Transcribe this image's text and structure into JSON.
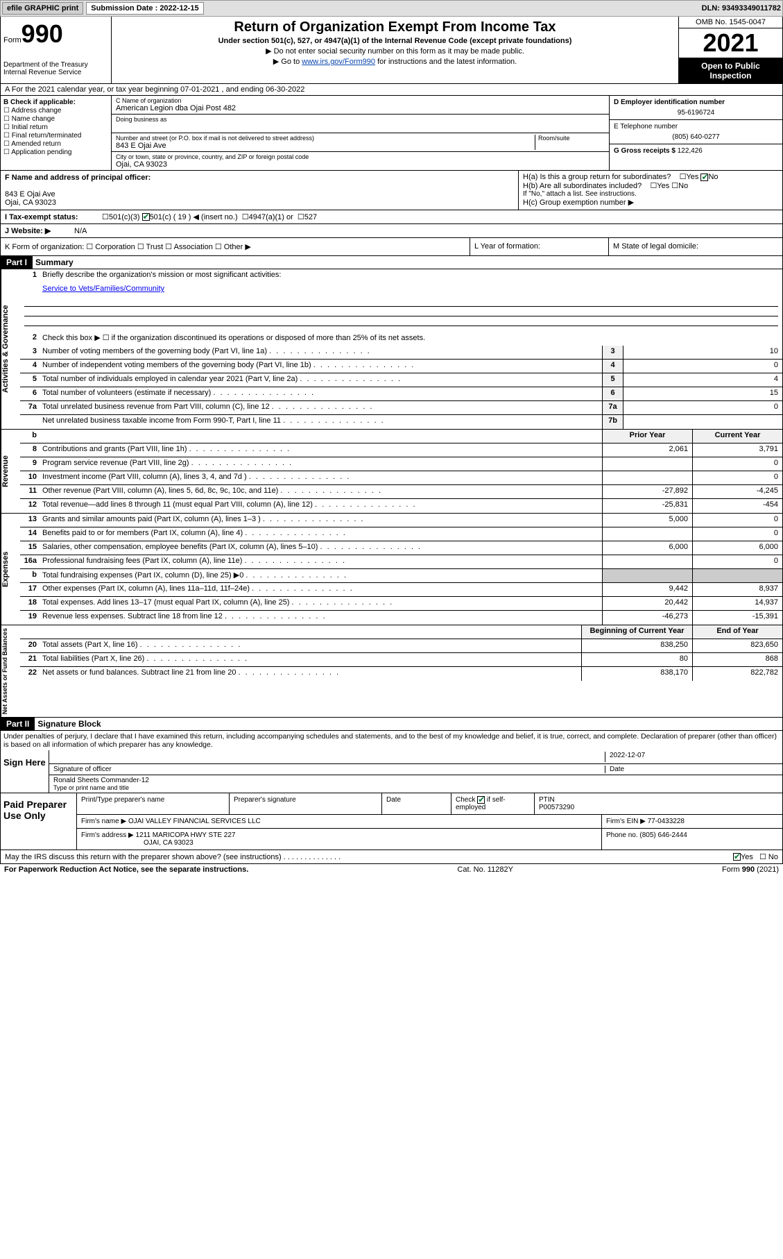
{
  "topbar": {
    "efile": "efile GRAPHIC print",
    "sub_label": "Submission Date : 2022-12-15",
    "dln": "DLN: 93493349011782"
  },
  "header": {
    "form_word": "Form",
    "form_num": "990",
    "dept": "Department of the Treasury Internal Revenue Service",
    "title": "Return of Organization Exempt From Income Tax",
    "sub": "Under section 501(c), 527, or 4947(a)(1) of the Internal Revenue Code (except private foundations)",
    "note1": "▶ Do not enter social security number on this form as it may be made public.",
    "note2_pre": "▶ Go to ",
    "note2_link": "www.irs.gov/Form990",
    "note2_post": " for instructions and the latest information.",
    "omb": "OMB No. 1545-0047",
    "year": "2021",
    "open": "Open to Public Inspection"
  },
  "line_a": "A For the 2021 calendar year, or tax year beginning 07-01-2021   , and ending 06-30-2022",
  "col_b": {
    "title": "B Check if applicable:",
    "items": [
      "Address change",
      "Name change",
      "Initial return",
      "Final return/terminated",
      "Amended return",
      "Application pending"
    ]
  },
  "col_c": {
    "name_lbl": "C Name of organization",
    "name": "American Legion dba Ojai Post 482",
    "dba_lbl": "Doing business as",
    "addr_lbl": "Number and street (or P.O. box if mail is not delivered to street address)",
    "room_lbl": "Room/suite",
    "addr": "843 E Ojai Ave",
    "city_lbl": "City or town, state or province, country, and ZIP or foreign postal code",
    "city": "Ojai, CA  93023"
  },
  "col_de": {
    "d_lbl": "D Employer identification number",
    "d_val": "95-6196724",
    "e_lbl": "E Telephone number",
    "e_val": "(805) 640-0277",
    "g_lbl": "G Gross receipts $",
    "g_val": "122,426"
  },
  "fh": {
    "f_lbl": "F Name and address of principal officer:",
    "f_addr1": "843 E Ojai Ave",
    "f_addr2": "Ojai, CA  93023",
    "ha": "H(a)  Is this a group return for subordinates?",
    "hb": "H(b)  Are all subordinates included?",
    "hb_note": "If \"No,\" attach a list. See instructions.",
    "hc": "H(c)  Group exemption number ▶"
  },
  "line_i": {
    "lbl": "I   Tax-exempt status:",
    "o1": "501(c)(3)",
    "o2": "501(c) ( 19 ) ◀ (insert no.)",
    "o3": "4947(a)(1) or",
    "o4": "527"
  },
  "line_j": {
    "lbl": "J   Website: ▶",
    "val": "N/A"
  },
  "line_k": "K Form of organization:   ☐ Corporation  ☐ Trust  ☐ Association  ☐ Other ▶",
  "line_l": "L Year of formation:",
  "line_m": "M State of legal domicile:",
  "part1": {
    "hdr": "Part I",
    "title": "Summary"
  },
  "summary": {
    "q1": "Briefly describe the organization's mission or most significant activities:",
    "q1_val": "Service to Vets/Families/Community",
    "q2": "Check this box ▶ ☐  if the organization discontinued its operations or disposed of more than 25% of its net assets.",
    "rows": [
      {
        "n": "3",
        "d": "Number of voting members of the governing body (Part VI, line 1a)",
        "bx": "3",
        "v": "10"
      },
      {
        "n": "4",
        "d": "Number of independent voting members of the governing body (Part VI, line 1b)",
        "bx": "4",
        "v": "0"
      },
      {
        "n": "5",
        "d": "Total number of individuals employed in calendar year 2021 (Part V, line 2a)",
        "bx": "5",
        "v": "4"
      },
      {
        "n": "6",
        "d": "Total number of volunteers (estimate if necessary)",
        "bx": "6",
        "v": "15"
      },
      {
        "n": "7a",
        "d": "Total unrelated business revenue from Part VIII, column (C), line 12",
        "bx": "7a",
        "v": "0"
      },
      {
        "n": "",
        "d": "Net unrelated business taxable income from Form 990-T, Part I, line 11",
        "bx": "7b",
        "v": ""
      }
    ],
    "col_prior": "Prior Year",
    "col_curr": "Current Year",
    "rev": [
      {
        "n": "8",
        "d": "Contributions and grants (Part VIII, line 1h)",
        "p": "2,061",
        "c": "3,791"
      },
      {
        "n": "9",
        "d": "Program service revenue (Part VIII, line 2g)",
        "p": "",
        "c": "0"
      },
      {
        "n": "10",
        "d": "Investment income (Part VIII, column (A), lines 3, 4, and 7d )",
        "p": "",
        "c": "0"
      },
      {
        "n": "11",
        "d": "Other revenue (Part VIII, column (A), lines 5, 6d, 8c, 9c, 10c, and 11e)",
        "p": "-27,892",
        "c": "-4,245"
      },
      {
        "n": "12",
        "d": "Total revenue—add lines 8 through 11 (must equal Part VIII, column (A), line 12)",
        "p": "-25,831",
        "c": "-454"
      }
    ],
    "exp": [
      {
        "n": "13",
        "d": "Grants and similar amounts paid (Part IX, column (A), lines 1–3 )",
        "p": "5,000",
        "c": "0"
      },
      {
        "n": "14",
        "d": "Benefits paid to or for members (Part IX, column (A), line 4)",
        "p": "",
        "c": "0"
      },
      {
        "n": "15",
        "d": "Salaries, other compensation, employee benefits (Part IX, column (A), lines 5–10)",
        "p": "6,000",
        "c": "6,000"
      },
      {
        "n": "16a",
        "d": "Professional fundraising fees (Part IX, column (A), line 11e)",
        "p": "",
        "c": "0"
      },
      {
        "n": "b",
        "d": "Total fundraising expenses (Part IX, column (D), line 25) ▶0",
        "p": "shade",
        "c": "shade"
      },
      {
        "n": "17",
        "d": "Other expenses (Part IX, column (A), lines 11a–11d, 11f–24e)",
        "p": "9,442",
        "c": "8,937"
      },
      {
        "n": "18",
        "d": "Total expenses. Add lines 13–17 (must equal Part IX, column (A), line 25)",
        "p": "20,442",
        "c": "14,937"
      },
      {
        "n": "19",
        "d": "Revenue less expenses. Subtract line 18 from line 12",
        "p": "-46,273",
        "c": "-15,391"
      }
    ],
    "col_beg": "Beginning of Current Year",
    "col_end": "End of Year",
    "net": [
      {
        "n": "20",
        "d": "Total assets (Part X, line 16)",
        "p": "838,250",
        "c": "823,650"
      },
      {
        "n": "21",
        "d": "Total liabilities (Part X, line 26)",
        "p": "80",
        "c": "868"
      },
      {
        "n": "22",
        "d": "Net assets or fund balances. Subtract line 21 from line 20",
        "p": "838,170",
        "c": "822,782"
      }
    ]
  },
  "side_labels": {
    "gov": "Activities & Governance",
    "rev": "Revenue",
    "exp": "Expenses",
    "net": "Net Assets or Fund Balances"
  },
  "part2": {
    "hdr": "Part II",
    "title": "Signature Block"
  },
  "penalties": "Under penalties of perjury, I declare that I have examined this return, including accompanying schedules and statements, and to the best of my knowledge and belief, it is true, correct, and complete. Declaration of preparer (other than officer) is based on all information of which preparer has any knowledge.",
  "sign": {
    "here": "Sign Here",
    "sig_lbl": "Signature of officer",
    "date_lbl": "Date",
    "date_val": "2022-12-07",
    "name": "Ronald Sheets  Commander-12",
    "name_lbl": "Type or print name and title"
  },
  "paid": {
    "title": "Paid Preparer Use Only",
    "h1": "Print/Type preparer's name",
    "h2": "Preparer's signature",
    "h3": "Date",
    "h4_pre": "Check",
    "h4_post": "if self-employed",
    "h5": "PTIN",
    "ptin": "P00573290",
    "firm_lbl": "Firm's name    ▶",
    "firm": "OJAI VALLEY FINANCIAL SERVICES LLC",
    "ein_lbl": "Firm's EIN ▶",
    "ein": "77-0433228",
    "addr_lbl": "Firm's address ▶",
    "addr1": "1211 MARICOPA HWY STE 227",
    "addr2": "OJAI, CA  93023",
    "ph_lbl": "Phone no.",
    "ph": "(805) 646-2444"
  },
  "discuss": "May the IRS discuss this return with the preparer shown above? (see instructions)",
  "foot": {
    "l": "For Paperwork Reduction Act Notice, see the separate instructions.",
    "m": "Cat. No. 11282Y",
    "r": "Form 990 (2021)"
  }
}
